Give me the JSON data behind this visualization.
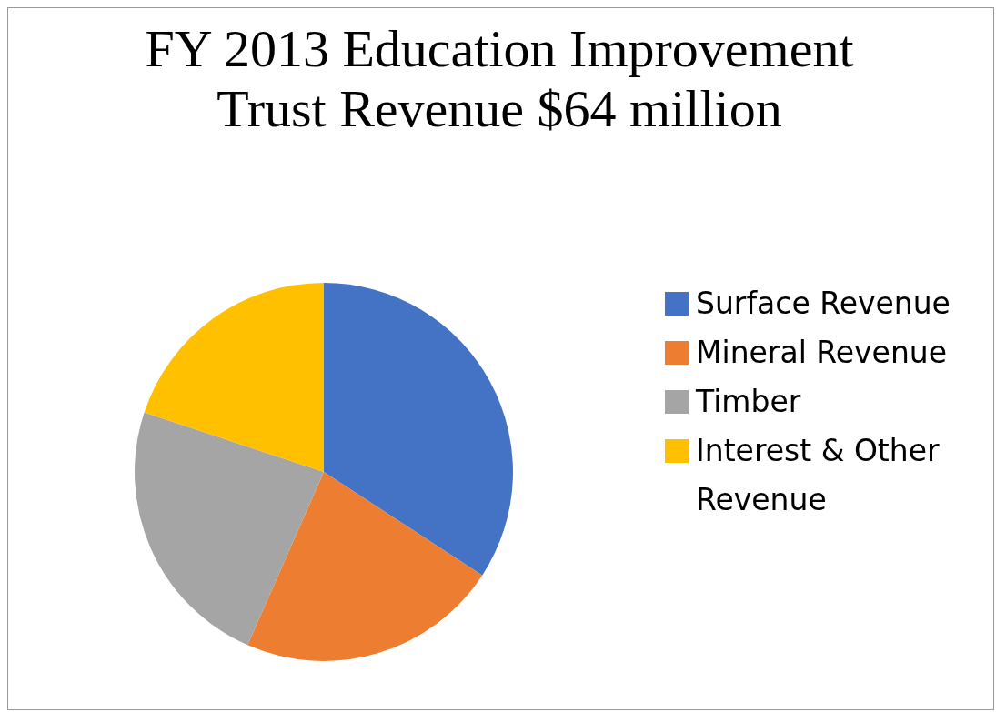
{
  "chart_data": {
    "type": "pie",
    "title": "FY 2013 Education Improvement Trust Revenue $64 million",
    "categories": [
      "Surface Revenue",
      "Mineral Revenue",
      "Timber",
      "Interest & Other Revenue"
    ],
    "values": [
      34.2,
      22.4,
      23.5,
      19.9
    ],
    "colors": [
      "#4472c4",
      "#ed7d31",
      "#a5a5a5",
      "#ffc000"
    ],
    "legend": "right"
  }
}
